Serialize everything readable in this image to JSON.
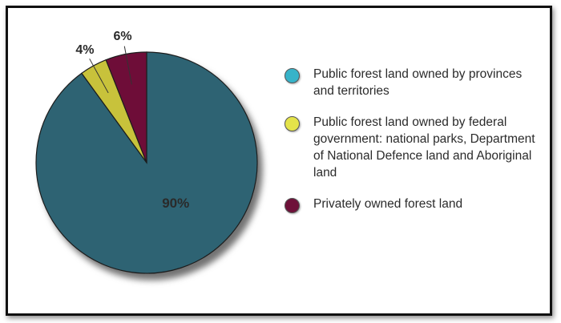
{
  "chart_data": {
    "type": "pie",
    "slices": [
      {
        "label": "Public forest land owned by provinces and territories",
        "value": 90,
        "display": "90%",
        "color": "#2d6373"
      },
      {
        "label": "Public forest land owned by federal government: national parks, Department of National Defence land and Aboriginal land",
        "value": 4,
        "display": "4%",
        "color": "#c8c23a"
      },
      {
        "label": "Privately owned forest land",
        "value": 6,
        "display": "6%",
        "color": "#6e1139"
      }
    ],
    "legend_position": "right"
  },
  "colors": {
    "legend_teal": "#37b3c9",
    "legend_yellow": "#e4e34a",
    "legend_maroon": "#6e1139"
  }
}
